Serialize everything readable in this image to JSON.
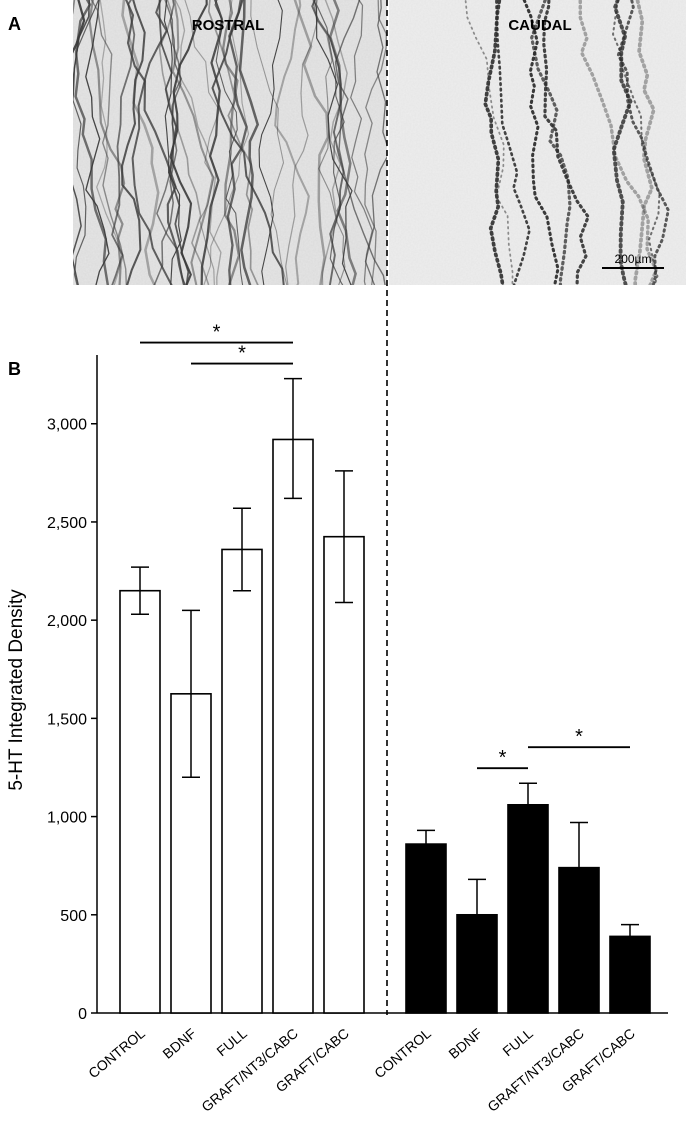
{
  "panels": {
    "a_label": "A",
    "b_label": "B",
    "rostral_title": "ROSTRAL",
    "caudal_title": "CAUDAL",
    "scale_bar_label": "200µm"
  },
  "significance_marker": "*",
  "chart_data": {
    "type": "bar",
    "ylabel": "5-HT Integrated Density",
    "ylim": [
      0,
      3350
    ],
    "yticks": [
      0,
      500,
      1000,
      1500,
      2000,
      2500,
      3000
    ],
    "ytick_labels": [
      "0",
      "500",
      "1,000",
      "1,500",
      "2,000",
      "2,500",
      "3,000"
    ],
    "grid": false,
    "groups": [
      {
        "name": "ROSTRAL",
        "fill": "#ffffff",
        "categories": [
          "CONTROL",
          "BDNF",
          "FULL",
          "GRAFT/NT3/CABC",
          "GRAFT/CABC"
        ],
        "values": [
          2150,
          1625,
          2360,
          2920,
          2425
        ],
        "error_low": [
          2030,
          1200,
          2150,
          2620,
          2090
        ],
        "error_high": [
          2270,
          2050,
          2570,
          3230,
          2760
        ],
        "significance": [
          {
            "from": "CONTROL",
            "to": "GRAFT/NT3/CABC",
            "label": "*"
          },
          {
            "from": "BDNF",
            "to": "GRAFT/NT3/CABC",
            "label": "*"
          }
        ]
      },
      {
        "name": "CAUDAL",
        "fill": "#000000",
        "categories": [
          "CONTROL",
          "BDNF",
          "FULL",
          "GRAFT/NT3/CABC",
          "GRAFT/CABC"
        ],
        "values": [
          860,
          500,
          1060,
          740,
          390
        ],
        "error_low": [
          790,
          320,
          950,
          510,
          330
        ],
        "error_high": [
          930,
          680,
          1170,
          970,
          450
        ],
        "significance": [
          {
            "from": "BDNF",
            "to": "FULL",
            "label": "*"
          },
          {
            "from": "FULL",
            "to": "GRAFT/CABC",
            "label": "*"
          }
        ]
      }
    ]
  }
}
